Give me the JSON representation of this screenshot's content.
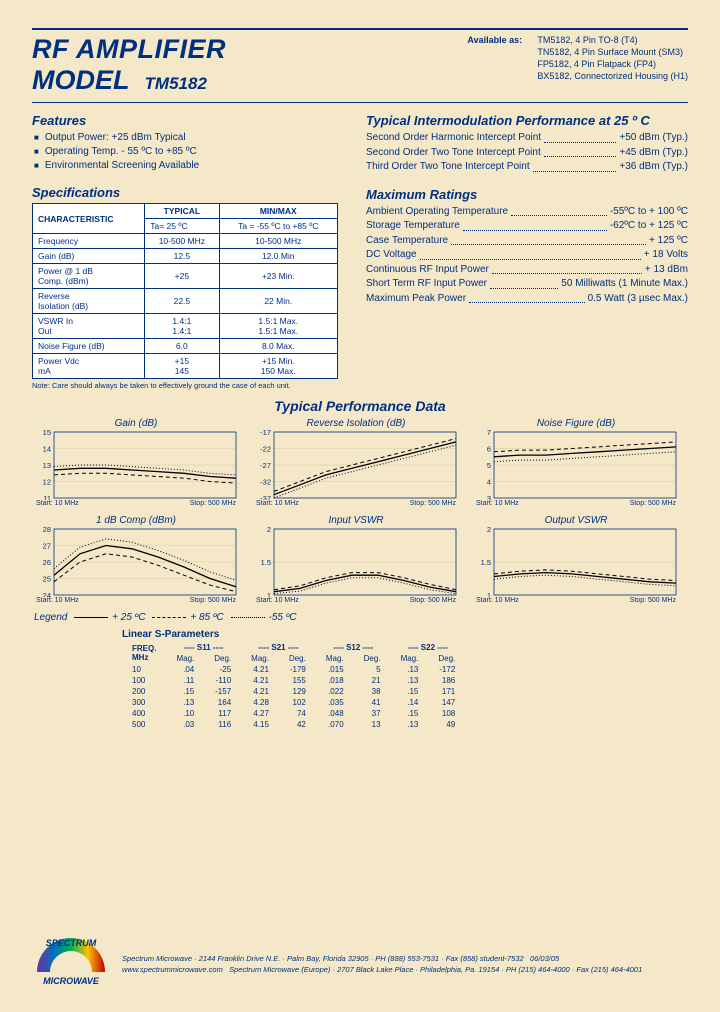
{
  "header": {
    "title_line1": "RF AMPLIFIER",
    "title_line2": "MODEL",
    "model_id": "TM5182",
    "avail_label": "Available as:",
    "avail_items": [
      "TM5182, 4 Pin TO-8 (T4)",
      "TN5182, 4 Pin Surface Mount (SM3)",
      "FP5182, 4 Pin Flatpack (FP4)",
      "BX5182, Connectorized Housing (H1)"
    ]
  },
  "features": {
    "heading": "Features",
    "items": [
      "Output Power: +25 dBm Typical",
      "Operating Temp. - 55 ºC to +85 ºC",
      "Environmental Screening Available"
    ]
  },
  "spec_table": {
    "heading": "Specifications",
    "headers": {
      "c0": "CHARACTERISTIC",
      "c1": "TYPICAL",
      "c1sub": "Ta= 25 ºC",
      "c2": "MIN/MAX",
      "c2sub": "Ta = -55 ºC to +85 ºC"
    },
    "rows": [
      {
        "c0": "Frequency",
        "c1": "10-500 MHz",
        "c2": "10-500 MHz"
      },
      {
        "c0": "Gain (dB)",
        "c1": "12.5",
        "c2": "12.0 Min"
      },
      {
        "c0": "Power @ 1 dB\nComp. (dBm)",
        "c1": "+25",
        "c2": "+23 Min."
      },
      {
        "c0": "Reverse\nIsolation (dB)",
        "c1": "22.5",
        "c2": "22 Min."
      },
      {
        "c0": "VSWR        In\n                   Out",
        "c1": "1.4:1\n1.4:1",
        "c2": "1.5:1 Max.\n1.5:1 Max."
      },
      {
        "c0": "Noise Figure (dB)",
        "c1": "6.0",
        "c2": "8.0 Max."
      },
      {
        "c0": "Power       Vdc\n                   mA",
        "c1": "+15\n145",
        "c2": "+15 Min.\n150 Max."
      }
    ],
    "note": "Note: Care should always be taken to effectively ground the case of each unit."
  },
  "intermod": {
    "heading": "Typical Intermodulation Performance at 25 º C",
    "rows": [
      {
        "label": "Second Order Harmonic Intercept Point",
        "val": "+50 dBm (Typ.)"
      },
      {
        "label": "Second Order Two Tone Intercept Point",
        "val": "+45 dBm (Typ.)"
      },
      {
        "label": "Third Order Two Tone Intercept Point",
        "val": "+36 dBm (Typ.)"
      }
    ]
  },
  "maxratings": {
    "heading": "Maximum Ratings",
    "rows": [
      {
        "label": "Ambient Operating Temperature",
        "val": "-55ºC to + 100 ºC"
      },
      {
        "label": "Storage Temperature",
        "val": "-62ºC to + 125 ºC"
      },
      {
        "label": "Case Temperature",
        "val": "+ 125 ºC"
      },
      {
        "label": "DC Voltage",
        "val": "+ 18 Volts"
      },
      {
        "label": "Continuous RF Input Power",
        "val": "+ 13 dBm"
      },
      {
        "label": "Short Term RF Input Power",
        "val": "50 Milliwatts (1 Minute Max.)"
      },
      {
        "label": "Maximum Peak Power",
        "val": "0.5 Watt (3 µsec Max.)"
      }
    ]
  },
  "perf_heading": "Typical Performance Data",
  "charts": [
    {
      "title": "Gain (dB)",
      "ymin": 11,
      "ymax": 15,
      "yticks": [
        11,
        12,
        13,
        14,
        15
      ],
      "series_solid": [
        12.7,
        12.8,
        12.8,
        12.7,
        12.6,
        12.5,
        12.3,
        12.2
      ],
      "series_dash": [
        12.4,
        12.5,
        12.5,
        12.4,
        12.3,
        12.2,
        12.0,
        11.9
      ],
      "series_dot": [
        12.9,
        13.0,
        13.0,
        12.9,
        12.8,
        12.7,
        12.5,
        12.4
      ],
      "grid_color": "#d4c9a8",
      "line_color": "#000",
      "footer_l": "Start: 10 MHz",
      "footer_r": "Stop: 500 MHz"
    },
    {
      "title": "Reverse Isolation (dB)",
      "ymin": -37,
      "ymax": -17,
      "yticks": [
        -37,
        -32,
        -27,
        -22,
        -17
      ],
      "series_solid": [
        -36,
        -33,
        -30,
        -28,
        -26,
        -24,
        -22,
        -20
      ],
      "series_dash": [
        -35,
        -32,
        -29,
        -27,
        -25,
        -23,
        -21,
        -19
      ],
      "series_dot": [
        -37,
        -34,
        -31,
        -29,
        -27,
        -25,
        -23,
        -21
      ],
      "grid_color": "#d4c9a8",
      "line_color": "#000",
      "footer_l": "Start: 10 MHz",
      "footer_r": "Stop: 500 MHz"
    },
    {
      "title": "Noise Figure (dB)",
      "ymin": 3,
      "ymax": 7,
      "yticks": [
        3,
        4,
        5,
        6,
        7
      ],
      "series_solid": [
        5.5,
        5.6,
        5.6,
        5.7,
        5.8,
        5.9,
        6.0,
        6.1
      ],
      "series_dash": [
        5.8,
        5.9,
        5.9,
        6.0,
        6.1,
        6.2,
        6.3,
        6.4
      ],
      "series_dot": [
        5.2,
        5.3,
        5.3,
        5.4,
        5.5,
        5.6,
        5.7,
        5.8
      ],
      "grid_color": "#d4c9a8",
      "line_color": "#000",
      "footer_l": "Start: 10 MHz",
      "footer_r": "Stop: 500 MHz"
    },
    {
      "title": "1 dB Comp (dBm)",
      "ymin": 24,
      "ymax": 28,
      "yticks": [
        24,
        25,
        26,
        27,
        28
      ],
      "series_solid": [
        25.2,
        26.5,
        27.0,
        26.8,
        26.3,
        25.7,
        25.0,
        24.5
      ],
      "series_dash": [
        24.8,
        26.0,
        26.5,
        26.3,
        25.8,
        25.2,
        24.6,
        24.2
      ],
      "series_dot": [
        25.6,
        26.9,
        27.4,
        27.2,
        26.7,
        26.1,
        25.4,
        24.9
      ],
      "grid_color": "#d4c9a8",
      "line_color": "#000",
      "footer_l": "Start: 10 MHz",
      "footer_r": "Stop: 500 MHz"
    },
    {
      "title": "Input VSWR",
      "ymin": 1.0,
      "ymax": 2.0,
      "yticks": [
        1.0,
        1.5,
        2.0
      ],
      "series_solid": [
        1.05,
        1.1,
        1.22,
        1.3,
        1.3,
        1.22,
        1.12,
        1.05
      ],
      "series_dash": [
        1.08,
        1.14,
        1.26,
        1.34,
        1.34,
        1.26,
        1.16,
        1.08
      ],
      "series_dot": [
        1.02,
        1.06,
        1.18,
        1.26,
        1.26,
        1.18,
        1.08,
        1.02
      ],
      "grid_color": "#d4c9a8",
      "line_color": "#000",
      "footer_l": "Start: 10 MHz",
      "footer_r": "Stop: 500 MHz"
    },
    {
      "title": "Output VSWR",
      "ymin": 1.0,
      "ymax": 2.0,
      "yticks": [
        1.0,
        1.5,
        2.0
      ],
      "series_solid": [
        1.28,
        1.32,
        1.34,
        1.32,
        1.28,
        1.24,
        1.2,
        1.18
      ],
      "series_dash": [
        1.32,
        1.36,
        1.38,
        1.36,
        1.32,
        1.28,
        1.24,
        1.22
      ],
      "series_dot": [
        1.24,
        1.28,
        1.3,
        1.28,
        1.24,
        1.2,
        1.16,
        1.14
      ],
      "grid_color": "#d4c9a8",
      "line_color": "#000",
      "footer_l": "Start: 10 MHz",
      "footer_r": "Stop: 500 MHz"
    }
  ],
  "legend": {
    "label": "Legend",
    "solid": "+ 25 ºC",
    "dash": "+ 85 ºC",
    "dot": "-55 ºC"
  },
  "sparam": {
    "title": "Linear S-Parameters",
    "head_freq": "FREQ.\nMHz",
    "groups": [
      "S11",
      "S21",
      "S12",
      "S22"
    ],
    "sub": [
      "Mag.",
      "Deg."
    ],
    "rows": [
      {
        "f": "10",
        "s11m": ".04",
        "s11d": "-25",
        "s21m": "4.21",
        "s21d": "-179",
        "s12m": ".015",
        "s12d": "5",
        "s22m": ".13",
        "s22d": "-172"
      },
      {
        "f": "100",
        "s11m": ".11",
        "s11d": "-110",
        "s21m": "4.21",
        "s21d": "155",
        "s12m": ".018",
        "s12d": "21",
        "s22m": ".13",
        "s22d": "186"
      },
      {
        "f": "200",
        "s11m": ".15",
        "s11d": "-157",
        "s21m": "4.21",
        "s21d": "129",
        "s12m": ".022",
        "s12d": "38",
        "s22m": ".15",
        "s22d": "171"
      },
      {
        "f": "300",
        "s11m": ".13",
        "s11d": "164",
        "s21m": "4.28",
        "s21d": "102",
        "s12m": ".035",
        "s12d": "41",
        "s22m": ".14",
        "s22d": "147"
      },
      {
        "f": "400",
        "s11m": ".10",
        "s11d": "117",
        "s21m": "4.27",
        "s21d": "74",
        "s12m": ".048",
        "s12d": "37",
        "s22m": ".15",
        "s22d": "108"
      },
      {
        "f": "500",
        "s11m": ".03",
        "s11d": "116",
        "s21m": "4.15",
        "s21d": "42",
        "s12m": ".070",
        "s12d": "13",
        "s22m": ".13",
        "s22d": "49"
      }
    ]
  },
  "footer": {
    "logo_top": "SPECTRUM",
    "logo_bottom": "MICROWAVE",
    "line1": "Spectrum Microwave · 2144 Franklin Drive N.E. · Palm Bay, Florida 32905 · PH (888) 553-7531 · Fax (858) student-7532",
    "date": "06/03/05",
    "url": "www.spectrummicrowave.com",
    "line2": "Spectrum Microwave (Europe) · 2707 Black Lake Place · Philadelphia, Pa. 19154 · PH (215) 464-4000 · Fax (215) 464-4001"
  }
}
